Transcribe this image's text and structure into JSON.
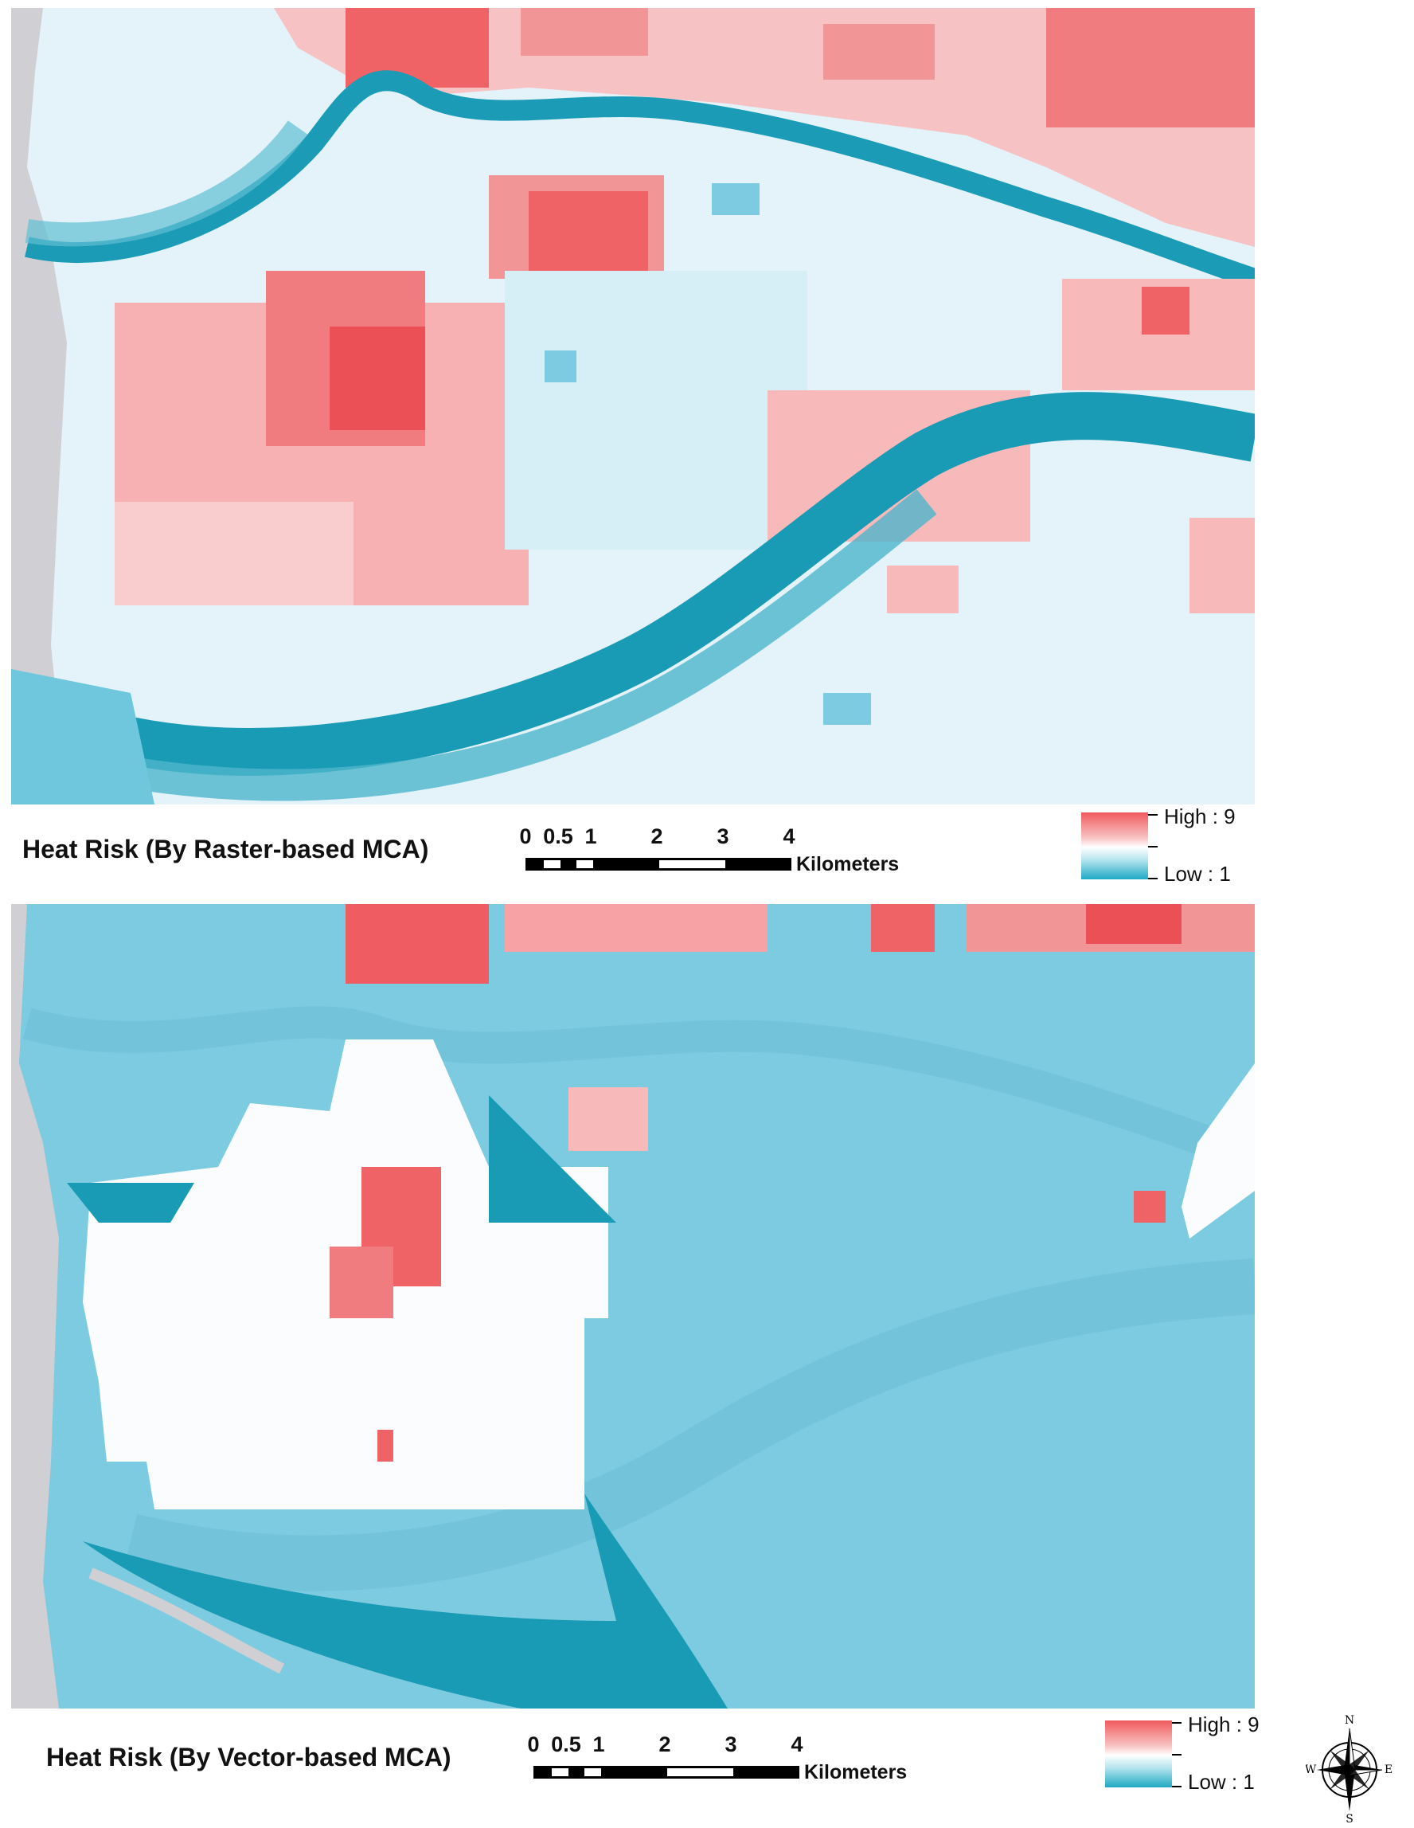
{
  "maps": [
    {
      "title": "Heat Risk (By Raster-based MCA)",
      "scale": {
        "tick_labels": [
          "0",
          "0.5",
          "1",
          "2",
          "3",
          "4"
        ],
        "unit": "Kilometers"
      },
      "legend": {
        "high_label": "High : 9",
        "low_label": "Low : 1",
        "high_color": "#f05a5e",
        "low_color": "#1ea9c4"
      }
    },
    {
      "title": "Heat Risk (By Vector-based MCA)",
      "scale": {
        "tick_labels": [
          "0",
          "0.5",
          "1",
          "2",
          "3",
          "4"
        ],
        "unit": "Kilometers"
      },
      "legend": {
        "high_label": "High : 9",
        "low_label": "Low : 1",
        "high_color": "#f05a5e",
        "low_color": "#1ea9c4"
      }
    }
  ],
  "north_arrow": {
    "icon": "compass-rose-icon",
    "labels": {
      "n": "N",
      "s": "S",
      "e": "E",
      "w": "W"
    }
  },
  "colors": {
    "water": "#1a9bb5",
    "low_fill": "#7dcbe0",
    "mid_light": "#d6eff6",
    "neutral": "#ffffff",
    "mid_warm": "#f7b9ba",
    "high_fill": "#ef5d62",
    "coast_land": "#cfcfd4"
  }
}
